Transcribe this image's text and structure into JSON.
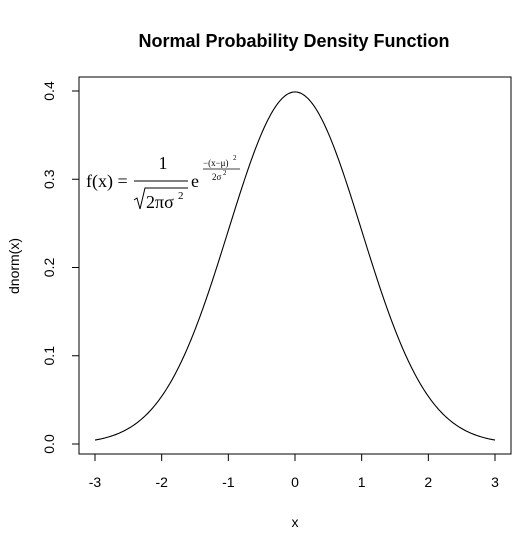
{
  "chart_data": {
    "type": "line",
    "title": "Normal Probability Density Function",
    "xlabel": "x",
    "ylabel": "dnorm(x)",
    "xlim": [
      -3,
      3
    ],
    "ylim": [
      0,
      0.4
    ],
    "x_ticks": [
      -3,
      -2,
      -1,
      0,
      1,
      2,
      3
    ],
    "x_tick_labels": [
      "-3",
      "-2",
      "-1",
      "0",
      "1",
      "2",
      "3"
    ],
    "y_ticks": [
      0.0,
      0.1,
      0.2,
      0.3,
      0.4
    ],
    "y_tick_labels": [
      "0.0",
      "0.1",
      "0.2",
      "0.3",
      "0.4"
    ],
    "grid": false,
    "line_color": "#000000",
    "series": [
      {
        "x": [
          -3.0,
          -2.5,
          -2.0,
          -1.5,
          -1.0,
          -0.5,
          0.0,
          0.5,
          1.0,
          1.5,
          2.0,
          2.5,
          3.0
        ],
        "y": [
          0.0044,
          0.0175,
          0.054,
          0.1295,
          0.242,
          0.3521,
          0.3989,
          0.3521,
          0.242,
          0.1295,
          0.054,
          0.0175,
          0.0044
        ]
      }
    ],
    "annotation": {
      "lhs": "f(x) =",
      "numerator": "1",
      "denominator": "2πσ",
      "denominator_exp": "2",
      "base": "e",
      "exp_numerator": "−(x−μ)",
      "exp_numerator_exp": "2",
      "exp_denominator": "2σ",
      "exp_denominator_exp": "2"
    }
  }
}
